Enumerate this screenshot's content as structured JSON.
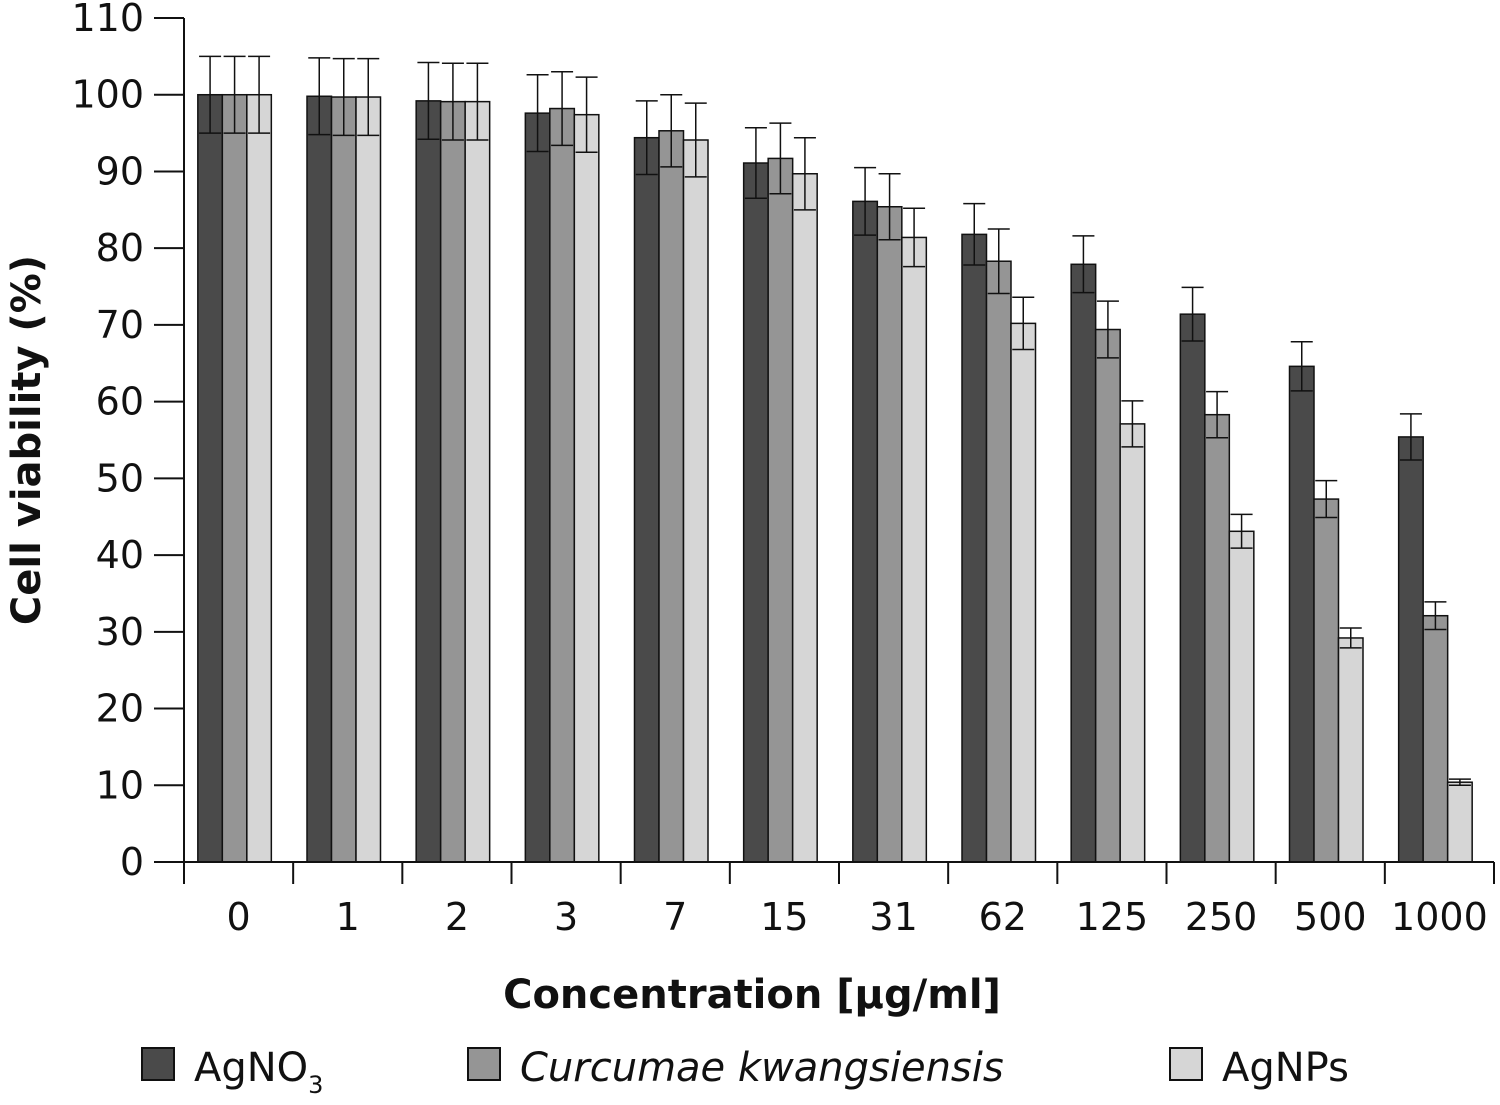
{
  "chart_data": {
    "type": "bar",
    "title": "",
    "xlabel": "Concentration [µg/ml]",
    "ylabel": "Cell viability (%)",
    "ylim": [
      0,
      110
    ],
    "yticks": [
      0,
      10,
      20,
      30,
      40,
      50,
      60,
      70,
      80,
      90,
      100,
      110
    ],
    "categories": [
      "0",
      "1",
      "2",
      "3",
      "7",
      "15",
      "31",
      "62",
      "125",
      "250",
      "500",
      "1000"
    ],
    "grid": false,
    "legend_position": "bottom",
    "series": [
      {
        "name": "AgNO",
        "name_subscript": "3",
        "color": "#4a4a4a",
        "values": [
          100,
          99.8,
          99.2,
          97.6,
          94.4,
          91.1,
          86.1,
          81.8,
          77.9,
          71.4,
          64.6,
          55.4
        ],
        "errors": [
          5,
          5,
          5,
          5,
          4.8,
          4.6,
          4.4,
          4,
          3.7,
          3.5,
          3.2,
          3
        ]
      },
      {
        "name": "Curcumae kwangsiensis",
        "italic": true,
        "color": "#959595",
        "values": [
          100,
          99.7,
          99.1,
          98.2,
          95.3,
          91.7,
          85.4,
          78.3,
          69.4,
          58.3,
          47.3,
          32.1
        ],
        "errors": [
          5,
          5,
          5,
          4.8,
          4.7,
          4.6,
          4.3,
          4.2,
          3.7,
          3,
          2.4,
          1.8
        ]
      },
      {
        "name": "AgNPs",
        "color": "#d6d6d6",
        "values": [
          100,
          99.7,
          99.1,
          97.4,
          94.1,
          89.7,
          81.4,
          70.2,
          57.1,
          43.1,
          29.2,
          10.4
        ],
        "errors": [
          5,
          5,
          5,
          4.9,
          4.8,
          4.7,
          3.8,
          3.4,
          3,
          2.2,
          1.3,
          0.4
        ]
      }
    ]
  }
}
